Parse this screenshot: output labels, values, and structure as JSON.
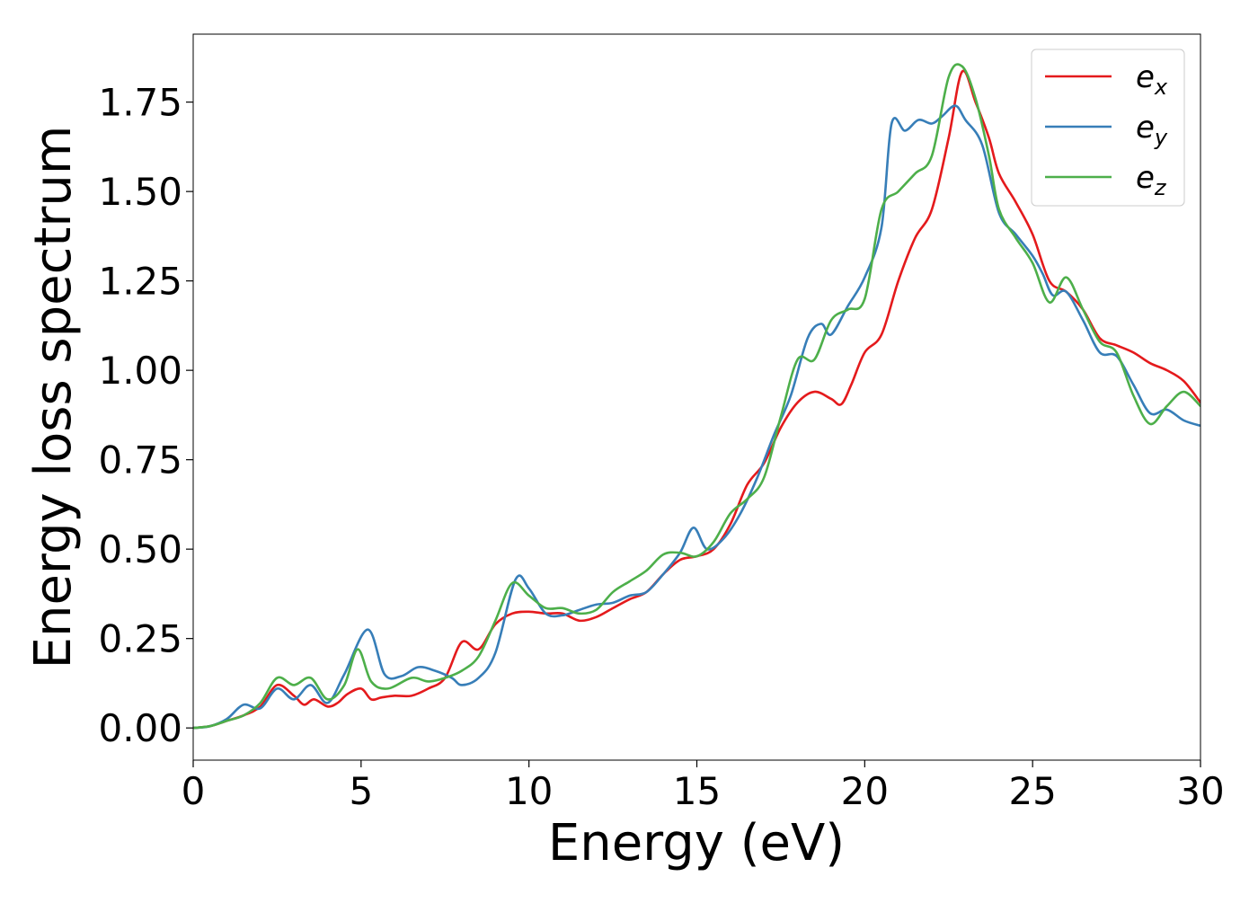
{
  "chart_data": {
    "type": "line",
    "title": "",
    "xlabel": "Energy (eV)",
    "ylabel": "Energy loss spectrum",
    "xlim": [
      0,
      30
    ],
    "ylim": [
      -0.09,
      1.94
    ],
    "xticks": [
      0,
      5,
      10,
      15,
      20,
      25,
      30
    ],
    "xtick_labels": [
      "0",
      "5",
      "10",
      "15",
      "20",
      "25",
      "30"
    ],
    "yticks": [
      0.0,
      0.25,
      0.5,
      0.75,
      1.0,
      1.25,
      1.5,
      1.75
    ],
    "ytick_labels": [
      "0.00",
      "0.25",
      "0.50",
      "0.75",
      "1.00",
      "1.25",
      "1.50",
      "1.75"
    ],
    "grid": false,
    "legend_position": "top-right",
    "series": [
      {
        "name": "e_x",
        "legend_main": "e",
        "legend_sub": "x",
        "color": "#e41a1c",
        "points": [
          [
            0,
            0
          ],
          [
            0.5,
            0.005
          ],
          [
            1,
            0.02
          ],
          [
            1.5,
            0.035
          ],
          [
            2,
            0.06
          ],
          [
            2.5,
            0.12
          ],
          [
            3,
            0.09
          ],
          [
            3.3,
            0.065
          ],
          [
            3.6,
            0.08
          ],
          [
            4,
            0.06
          ],
          [
            4.3,
            0.07
          ],
          [
            4.6,
            0.095
          ],
          [
            5,
            0.11
          ],
          [
            5.3,
            0.08
          ],
          [
            5.6,
            0.085
          ],
          [
            6,
            0.09
          ],
          [
            6.5,
            0.09
          ],
          [
            7,
            0.11
          ],
          [
            7.5,
            0.14
          ],
          [
            8,
            0.24
          ],
          [
            8.5,
            0.22
          ],
          [
            9,
            0.29
          ],
          [
            9.5,
            0.32
          ],
          [
            10,
            0.325
          ],
          [
            10.5,
            0.32
          ],
          [
            11,
            0.32
          ],
          [
            11.5,
            0.3
          ],
          [
            12,
            0.31
          ],
          [
            12.5,
            0.335
          ],
          [
            13,
            0.36
          ],
          [
            13.5,
            0.38
          ],
          [
            14,
            0.43
          ],
          [
            14.5,
            0.47
          ],
          [
            15,
            0.48
          ],
          [
            15.5,
            0.5
          ],
          [
            16,
            0.57
          ],
          [
            16.5,
            0.68
          ],
          [
            17,
            0.74
          ],
          [
            17.5,
            0.84
          ],
          [
            18,
            0.91
          ],
          [
            18.5,
            0.94
          ],
          [
            19,
            0.92
          ],
          [
            19.3,
            0.905
          ],
          [
            19.6,
            0.96
          ],
          [
            20,
            1.05
          ],
          [
            20.5,
            1.1
          ],
          [
            21,
            1.25
          ],
          [
            21.5,
            1.37
          ],
          [
            22,
            1.45
          ],
          [
            22.5,
            1.65
          ],
          [
            22.9,
            1.835
          ],
          [
            23.3,
            1.75
          ],
          [
            23.7,
            1.65
          ],
          [
            24,
            1.55
          ],
          [
            24.5,
            1.47
          ],
          [
            25,
            1.38
          ],
          [
            25.5,
            1.25
          ],
          [
            26,
            1.22
          ],
          [
            26.5,
            1.17
          ],
          [
            27,
            1.09
          ],
          [
            27.5,
            1.07
          ],
          [
            28,
            1.05
          ],
          [
            28.5,
            1.02
          ],
          [
            29,
            1.0
          ],
          [
            29.5,
            0.97
          ],
          [
            30,
            0.91
          ]
        ]
      },
      {
        "name": "e_y",
        "legend_main": "e",
        "legend_sub": "y",
        "color": "#377eb8",
        "points": [
          [
            0,
            0
          ],
          [
            0.5,
            0.005
          ],
          [
            1,
            0.025
          ],
          [
            1.5,
            0.065
          ],
          [
            2,
            0.055
          ],
          [
            2.5,
            0.11
          ],
          [
            3,
            0.08
          ],
          [
            3.5,
            0.12
          ],
          [
            4,
            0.07
          ],
          [
            4.5,
            0.15
          ],
          [
            5.2,
            0.275
          ],
          [
            5.7,
            0.15
          ],
          [
            6.2,
            0.145
          ],
          [
            6.7,
            0.17
          ],
          [
            7.2,
            0.16
          ],
          [
            7.7,
            0.14
          ],
          [
            8,
            0.12
          ],
          [
            8.5,
            0.14
          ],
          [
            9,
            0.21
          ],
          [
            9.6,
            0.415
          ],
          [
            10,
            0.39
          ],
          [
            10.5,
            0.32
          ],
          [
            11,
            0.315
          ],
          [
            11.5,
            0.33
          ],
          [
            12,
            0.345
          ],
          [
            12.5,
            0.35
          ],
          [
            13,
            0.37
          ],
          [
            13.5,
            0.38
          ],
          [
            14,
            0.43
          ],
          [
            14.5,
            0.49
          ],
          [
            14.9,
            0.56
          ],
          [
            15.3,
            0.5
          ],
          [
            15.8,
            0.53
          ],
          [
            16.3,
            0.6
          ],
          [
            16.8,
            0.7
          ],
          [
            17.3,
            0.82
          ],
          [
            17.8,
            0.93
          ],
          [
            18.3,
            1.09
          ],
          [
            18.7,
            1.13
          ],
          [
            19,
            1.1
          ],
          [
            19.5,
            1.18
          ],
          [
            20,
            1.26
          ],
          [
            20.5,
            1.4
          ],
          [
            20.8,
            1.69
          ],
          [
            21.2,
            1.67
          ],
          [
            21.6,
            1.7
          ],
          [
            22,
            1.69
          ],
          [
            22.3,
            1.71
          ],
          [
            22.7,
            1.74
          ],
          [
            23,
            1.7
          ],
          [
            23.5,
            1.63
          ],
          [
            24,
            1.44
          ],
          [
            24.5,
            1.38
          ],
          [
            25,
            1.32
          ],
          [
            25.3,
            1.27
          ],
          [
            25.6,
            1.21
          ],
          [
            26,
            1.22
          ],
          [
            26.5,
            1.14
          ],
          [
            27,
            1.05
          ],
          [
            27.5,
            1.04
          ],
          [
            28,
            0.96
          ],
          [
            28.5,
            0.88
          ],
          [
            29,
            0.89
          ],
          [
            29.5,
            0.86
          ],
          [
            30,
            0.845
          ]
        ]
      },
      {
        "name": "e_z",
        "legend_main": "e",
        "legend_sub": "z",
        "color": "#4daf4a",
        "points": [
          [
            0,
            0
          ],
          [
            0.5,
            0.005
          ],
          [
            1,
            0.02
          ],
          [
            1.5,
            0.035
          ],
          [
            2,
            0.07
          ],
          [
            2.5,
            0.14
          ],
          [
            3,
            0.12
          ],
          [
            3.5,
            0.14
          ],
          [
            4,
            0.08
          ],
          [
            4.5,
            0.12
          ],
          [
            4.9,
            0.22
          ],
          [
            5.3,
            0.13
          ],
          [
            5.8,
            0.11
          ],
          [
            6.5,
            0.14
          ],
          [
            7,
            0.13
          ],
          [
            7.5,
            0.14
          ],
          [
            8,
            0.16
          ],
          [
            8.5,
            0.2
          ],
          [
            9,
            0.3
          ],
          [
            9.5,
            0.405
          ],
          [
            10,
            0.37
          ],
          [
            10.5,
            0.335
          ],
          [
            11,
            0.335
          ],
          [
            11.5,
            0.32
          ],
          [
            12,
            0.33
          ],
          [
            12.5,
            0.38
          ],
          [
            13,
            0.41
          ],
          [
            13.5,
            0.44
          ],
          [
            14,
            0.485
          ],
          [
            14.5,
            0.49
          ],
          [
            15,
            0.48
          ],
          [
            15.5,
            0.52
          ],
          [
            16,
            0.6
          ],
          [
            16.5,
            0.64
          ],
          [
            17,
            0.7
          ],
          [
            17.5,
            0.87
          ],
          [
            18,
            1.03
          ],
          [
            18.5,
            1.03
          ],
          [
            19,
            1.14
          ],
          [
            19.5,
            1.17
          ],
          [
            20,
            1.2
          ],
          [
            20.5,
            1.45
          ],
          [
            21,
            1.5
          ],
          [
            21.5,
            1.55
          ],
          [
            22,
            1.6
          ],
          [
            22.5,
            1.82
          ],
          [
            22.9,
            1.85
          ],
          [
            23.3,
            1.76
          ],
          [
            23.7,
            1.6
          ],
          [
            24,
            1.45
          ],
          [
            24.5,
            1.37
          ],
          [
            25,
            1.3
          ],
          [
            25.5,
            1.19
          ],
          [
            26,
            1.26
          ],
          [
            26.5,
            1.17
          ],
          [
            27,
            1.08
          ],
          [
            27.5,
            1.05
          ],
          [
            28,
            0.93
          ],
          [
            28.5,
            0.85
          ],
          [
            29,
            0.9
          ],
          [
            29.5,
            0.94
          ],
          [
            30,
            0.9
          ]
        ]
      }
    ]
  }
}
